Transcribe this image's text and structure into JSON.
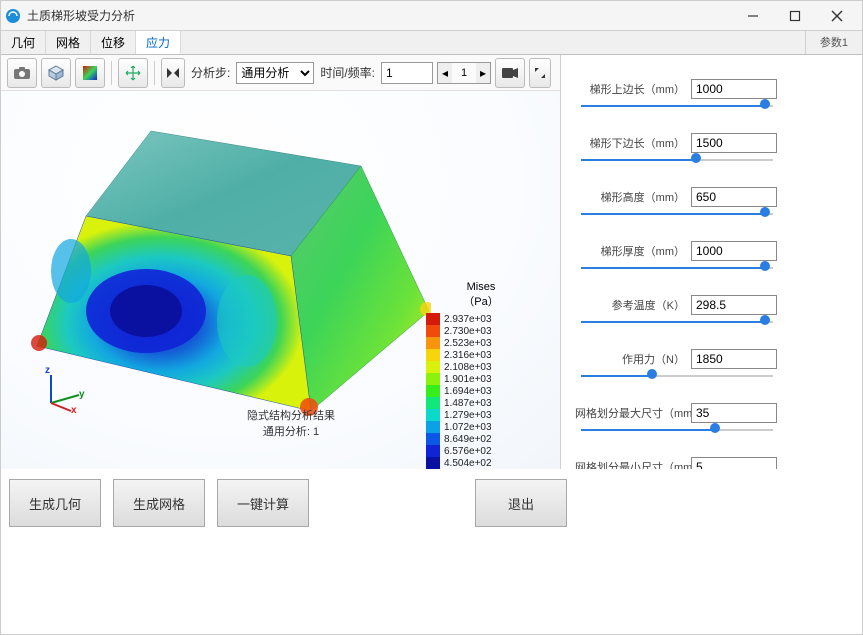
{
  "window": {
    "title": "土质梯形坡受力分析",
    "icon_color": "#1a8fd8"
  },
  "tabs": {
    "items": [
      {
        "label": "几何"
      },
      {
        "label": "网格"
      },
      {
        "label": "位移"
      },
      {
        "label": "应力"
      }
    ],
    "active_index": 3,
    "param_tab": "参数1"
  },
  "toolbar": {
    "step_label": "分析步:",
    "step_select": "通用分析",
    "time_label": "时间/频率:",
    "time_value": "1",
    "spin_value": "1"
  },
  "viewport": {
    "caption_line1": "隐式结构分析结果",
    "caption_line2": "通用分析: 1",
    "legend_title1": "Mises",
    "legend_title2": "（Pa）",
    "legend": [
      {
        "c": "#d41b0a",
        "v": "2.937e+03"
      },
      {
        "c": "#f04a0c",
        "v": "2.730e+03"
      },
      {
        "c": "#f9950c",
        "v": "2.523e+03"
      },
      {
        "c": "#f7d50c",
        "v": "2.316e+03"
      },
      {
        "c": "#d8f20c",
        "v": "2.108e+03"
      },
      {
        "c": "#8bf20c",
        "v": "1.901e+03"
      },
      {
        "c": "#36ef1a",
        "v": "1.694e+03"
      },
      {
        "c": "#10e97a",
        "v": "1.487e+03"
      },
      {
        "c": "#0bd9c9",
        "v": "1.279e+03"
      },
      {
        "c": "#0ba1e6",
        "v": "1.072e+03"
      },
      {
        "c": "#0b58e6",
        "v": "8.649e+02"
      },
      {
        "c": "#1024d6",
        "v": "6.576e+02"
      },
      {
        "c": "#0a11a0",
        "v": "4.504e+02"
      }
    ],
    "axes": {
      "x": "x",
      "y": "y",
      "z": "z"
    },
    "model_colors": {
      "top": "#5fb8b2",
      "side1_a": "#3ad456",
      "side1_b": "#6be23a",
      "side2_a": "#2a7de6",
      "side2_b": "#12c7b8",
      "deep_blue": "#1024d6",
      "mid_blue": "#145fd6",
      "cyan": "#1cc9c2",
      "green": "#3cd459",
      "yellow": "#f7d50c",
      "red": "#d41b0a"
    }
  },
  "params": [
    {
      "label": "梯形上边长（mm）",
      "value": "1000",
      "fill": 0.96
    },
    {
      "label": "梯形下边长（mm）",
      "value": "1500",
      "fill": 0.6
    },
    {
      "label": "梯形高度（mm）",
      "value": "650",
      "fill": 0.96
    },
    {
      "label": "梯形厚度（mm）",
      "value": "1000",
      "fill": 0.96
    },
    {
      "label": "参考温度（K）",
      "value": "298.5",
      "fill": 0.96
    },
    {
      "label": "作用力（N）",
      "value": "1850",
      "fill": 0.37
    },
    {
      "label": "网格划分最大尺寸（mm）",
      "value": "35",
      "fill": 0.7
    },
    {
      "label": "网格划分最小尺寸（mm）",
      "value": "5",
      "fill": 0.07
    }
  ],
  "buttons": {
    "gen_geom": "生成几何",
    "gen_mesh": "生成网格",
    "compute": "一键计算",
    "exit": "退出"
  }
}
